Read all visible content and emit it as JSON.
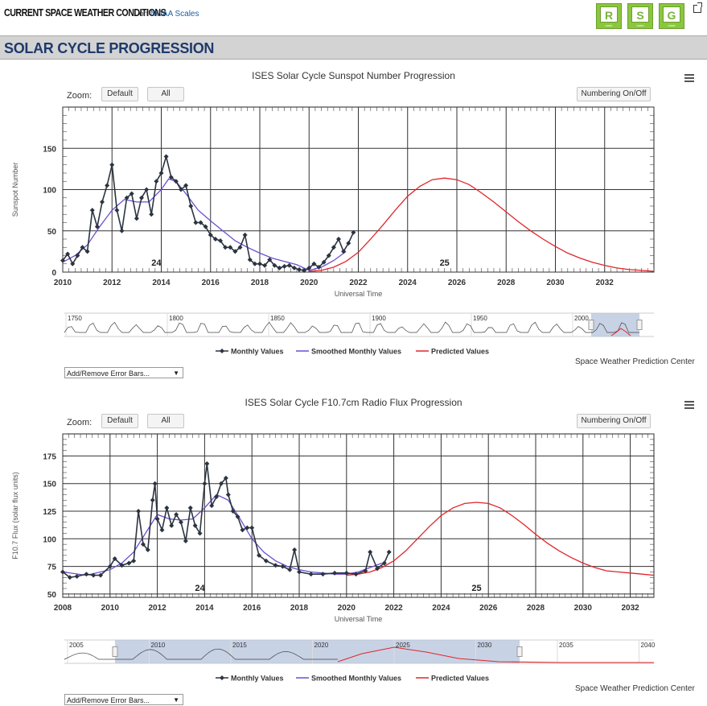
{
  "header": {
    "brand": "CURRENT SPACE WEATHER CONDITIONS",
    "on_text": "on",
    "scales_link": "NOAA Scales",
    "scales": [
      {
        "letter": "R",
        "level": "none"
      },
      {
        "letter": "S",
        "level": "none"
      },
      {
        "letter": "G",
        "level": "none"
      }
    ]
  },
  "section_title": "SOLAR CYCLE PROGRESSION",
  "colors": {
    "monthly": "#2b3440",
    "smoothed": "#6b4fd0",
    "predicted": "#e0262b",
    "navigator_fill": "#b6c3dc"
  },
  "charts": [
    {
      "zoom_label": "Zoom:",
      "zoom_default": "Default",
      "zoom_all": "All",
      "numbering": "Numbering On/Off",
      "credit": "Space Weather Prediction Center",
      "error_bars": "Add/Remove Error Bars...",
      "legend": [
        "Monthly Values",
        "Smoothed Monthly Values",
        "Predicted Values"
      ],
      "navigator_labels": [
        "1750",
        "1800",
        "1850",
        "1900",
        "1950",
        "2000"
      ],
      "chart_data": {
        "type": "line",
        "title": "ISES Solar Cycle Sunspot Number Progression",
        "xlabel": "Universal Time",
        "ylabel": "Sunspot Number",
        "xlim": [
          2010,
          2034
        ],
        "ylim": [
          0,
          200
        ],
        "xticks": [
          2010,
          2012,
          2014,
          2016,
          2018,
          2020,
          2022,
          2024,
          2026,
          2028,
          2030,
          2032
        ],
        "yticks": [
          0,
          50,
          100,
          150
        ],
        "cycle_labels": [
          {
            "x": 2013.8,
            "y": 8,
            "text": "24"
          },
          {
            "x": 2025.5,
            "y": 8,
            "text": "25"
          }
        ],
        "series": [
          {
            "name": "Monthly Values",
            "x": [
              2010.0,
              2010.2,
              2010.4,
              2010.6,
              2010.8,
              2011.0,
              2011.2,
              2011.4,
              2011.6,
              2011.8,
              2012.0,
              2012.2,
              2012.4,
              2012.6,
              2012.8,
              2013.0,
              2013.2,
              2013.4,
              2013.6,
              2013.8,
              2014.0,
              2014.2,
              2014.4,
              2014.6,
              2014.8,
              2015.0,
              2015.2,
              2015.4,
              2015.6,
              2015.8,
              2016.0,
              2016.2,
              2016.4,
              2016.6,
              2016.8,
              2017.0,
              2017.2,
              2017.4,
              2017.6,
              2017.8,
              2018.0,
              2018.2,
              2018.4,
              2018.6,
              2018.8,
              2019.0,
              2019.2,
              2019.4,
              2019.6,
              2019.8,
              2020.0,
              2020.2,
              2020.4,
              2020.6,
              2020.8,
              2021.0,
              2021.2,
              2021.4,
              2021.6,
              2021.8
            ],
            "y": [
              14,
              22,
              10,
              20,
              30,
              25,
              75,
              55,
              85,
              105,
              130,
              75,
              50,
              90,
              95,
              65,
              90,
              100,
              70,
              110,
              120,
              140,
              115,
              110,
              100,
              105,
              80,
              60,
              60,
              55,
              45,
              40,
              38,
              30,
              30,
              25,
              30,
              45,
              15,
              10,
              10,
              8,
              15,
              8,
              5,
              7,
              8,
              5,
              3,
              2,
              5,
              10,
              6,
              12,
              20,
              30,
              40,
              25,
              35,
              48
            ]
          },
          {
            "name": "Smoothed Monthly Values",
            "x": [
              2010.0,
              2010.5,
              2011.0,
              2011.5,
              2012.0,
              2012.5,
              2013.0,
              2013.5,
              2014.0,
              2014.3,
              2014.6,
              2015.0,
              2015.5,
              2016.0,
              2016.5,
              2017.0,
              2017.5,
              2018.0,
              2018.5,
              2019.0,
              2019.5,
              2020.0,
              2020.5,
              2021.0,
              2021.5
            ],
            "y": [
              12,
              20,
              33,
              55,
              75,
              88,
              85,
              85,
              100,
              113,
              110,
              95,
              75,
              62,
              50,
              38,
              30,
              23,
              17,
              13,
              9,
              2,
              6,
              14,
              25
            ]
          },
          {
            "name": "Predicted Values",
            "x": [
              2020.0,
              2020.5,
              2021.0,
              2021.5,
              2022.0,
              2022.5,
              2023.0,
              2023.5,
              2024.0,
              2024.5,
              2025.0,
              2025.5,
              2026.0,
              2026.5,
              2027.0,
              2027.5,
              2028.0,
              2028.5,
              2029.0,
              2029.5,
              2030.0,
              2030.5,
              2031.0,
              2031.5,
              2032.0,
              2032.5,
              2033.0,
              2033.5,
              2034.0
            ],
            "y": [
              1,
              2,
              6,
              13,
              24,
              40,
              57,
              75,
              92,
              104,
              112,
              114,
              112,
              106,
              96,
              85,
              73,
              61,
              50,
              40,
              31,
              23,
              17,
              12,
              8,
              5,
              3,
              2,
              1
            ]
          }
        ]
      }
    },
    {
      "zoom_label": "Zoom:",
      "zoom_default": "Default",
      "zoom_all": "All",
      "numbering": "Numbering On/Off",
      "credit": "Space Weather Prediction Center",
      "error_bars": "Add/Remove Error Bars...",
      "legend": [
        "Monthly Values",
        "Smoothed Monthly Values",
        "Predicted Values"
      ],
      "navigator_labels": [
        "2005",
        "2010",
        "2015",
        "2020",
        "2025",
        "2030",
        "2035",
        "2040"
      ],
      "chart_data": {
        "type": "line",
        "title": "ISES Solar Cycle F10.7cm Radio Flux Progression",
        "xlabel": "Universal Time",
        "ylabel": "F10.7 Flux (solar flux units)",
        "xlim": [
          2008,
          2033
        ],
        "ylim": [
          47,
          195
        ],
        "xticks": [
          2008,
          2010,
          2012,
          2014,
          2016,
          2018,
          2020,
          2022,
          2024,
          2026,
          2028,
          2030,
          2032
        ],
        "yticks": [
          50,
          75,
          100,
          125,
          150,
          175
        ],
        "cycle_labels": [
          {
            "x": 2013.8,
            "y": 53,
            "text": "24"
          },
          {
            "x": 2025.5,
            "y": 53,
            "text": "25"
          }
        ],
        "series": [
          {
            "name": "Monthly Values",
            "x": [
              2008.0,
              2008.3,
              2008.6,
              2009.0,
              2009.3,
              2009.6,
              2010.0,
              2010.2,
              2010.5,
              2010.8,
              2011.0,
              2011.2,
              2011.4,
              2011.6,
              2011.8,
              2011.9,
              2012.0,
              2012.2,
              2012.4,
              2012.6,
              2012.8,
              2013.0,
              2013.2,
              2013.4,
              2013.6,
              2013.8,
              2014.0,
              2014.1,
              2014.3,
              2014.5,
              2014.7,
              2014.9,
              2015.0,
              2015.2,
              2015.4,
              2015.6,
              2015.8,
              2016.0,
              2016.3,
              2016.6,
              2017.0,
              2017.3,
              2017.6,
              2017.8,
              2018.0,
              2018.5,
              2019.0,
              2019.5,
              2020.0,
              2020.4,
              2020.8,
              2021.0,
              2021.3,
              2021.6,
              2021.8
            ],
            "y": [
              70,
              65,
              66,
              68,
              67,
              67,
              75,
              82,
              76,
              78,
              80,
              125,
              95,
              90,
              135,
              150,
              118,
              108,
              128,
              112,
              122,
              115,
              98,
              128,
              112,
              105,
              150,
              168,
              130,
              138,
              150,
              155,
              140,
              125,
              120,
              108,
              110,
              110,
              85,
              80,
              76,
              75,
              72,
              90,
              70,
              68,
              68,
              69,
              69,
              68,
              71,
              88,
              73,
              78,
              88
            ]
          },
          {
            "name": "Smoothed Monthly Values",
            "x": [
              2008.0,
              2009.0,
              2010.0,
              2010.5,
              2011.0,
              2011.5,
              2012.0,
              2012.5,
              2013.0,
              2013.5,
              2014.0,
              2014.5,
              2015.0,
              2015.5,
              2016.0,
              2016.5,
              2017.0,
              2017.5,
              2018.0,
              2018.5,
              2019.0,
              2019.5,
              2020.0,
              2020.5,
              2021.0,
              2021.5
            ],
            "y": [
              70,
              67,
              72,
              78,
              88,
              105,
              122,
              118,
              117,
              118,
              128,
              140,
              135,
              118,
              100,
              88,
              80,
              75,
              72,
              70,
              69,
              68,
              68,
              70,
              74,
              78
            ]
          },
          {
            "name": "Predicted Values",
            "x": [
              2020.0,
              2020.5,
              2021.0,
              2021.5,
              2022.0,
              2022.5,
              2023.0,
              2023.5,
              2024.0,
              2024.5,
              2025.0,
              2025.5,
              2026.0,
              2026.5,
              2027.0,
              2027.5,
              2028.0,
              2028.5,
              2029.0,
              2029.5,
              2030.0,
              2030.5,
              2031.0,
              2031.5,
              2032.0,
              2032.5,
              2033.0
            ],
            "y": [
              67,
              68,
              70,
              74,
              80,
              89,
              100,
              111,
              121,
              128,
              132,
              133,
              132,
              128,
              121,
              113,
              104,
              96,
              89,
              83,
              78,
              74,
              71,
              70,
              69,
              68,
              67
            ]
          }
        ]
      }
    }
  ]
}
